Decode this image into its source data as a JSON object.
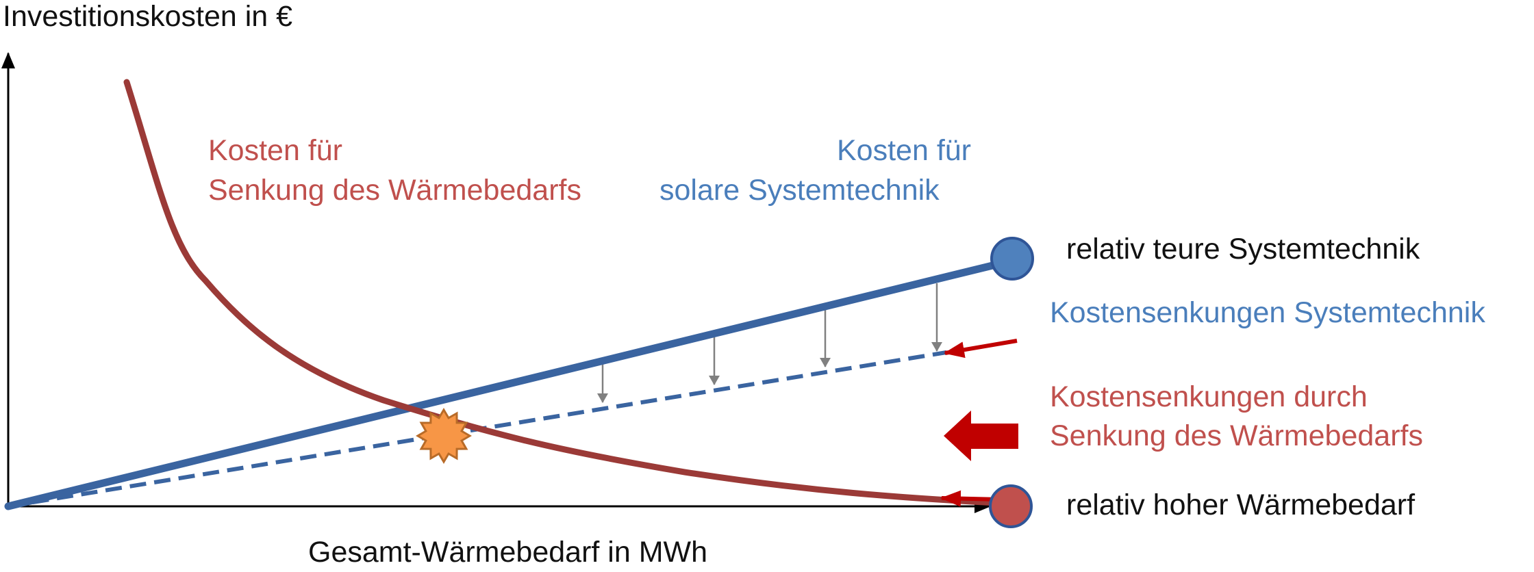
{
  "axes": {
    "y_label": "Investitionskosten  in €",
    "x_label": "Gesamt-Wärmebedarf in MWh"
  },
  "curves": {
    "heat_reduction": {
      "label_line1": "Kosten für",
      "label_line2": "Senkung des Wärmebedarfs",
      "color": "#9b3a37"
    },
    "solar_system": {
      "label_line1": "Kosten für",
      "label_line2": "solare Systemtechnik",
      "color": "#3a64a0"
    }
  },
  "markers": {
    "system_cost_point": {
      "label": "relativ teure Systemtechnik",
      "color": "#4f81bd"
    },
    "heat_demand_point": {
      "label": "relativ hoher Wärmebedarf",
      "color": "#c0504d"
    },
    "intersection_star": {
      "color": "#f79646"
    }
  },
  "annotations": {
    "system_reduction": "Kostensenkungen Systemtechnik",
    "demand_reduction_line1": "Kostensenkungen durch",
    "demand_reduction_line2": "Senkung des Wärmebedarfs"
  },
  "colors": {
    "axis": "#000000",
    "arrow_red": "#c00000",
    "arrow_gray": "#808080",
    "label_red": "#c0504d",
    "label_blue": "#4a7ebb"
  }
}
